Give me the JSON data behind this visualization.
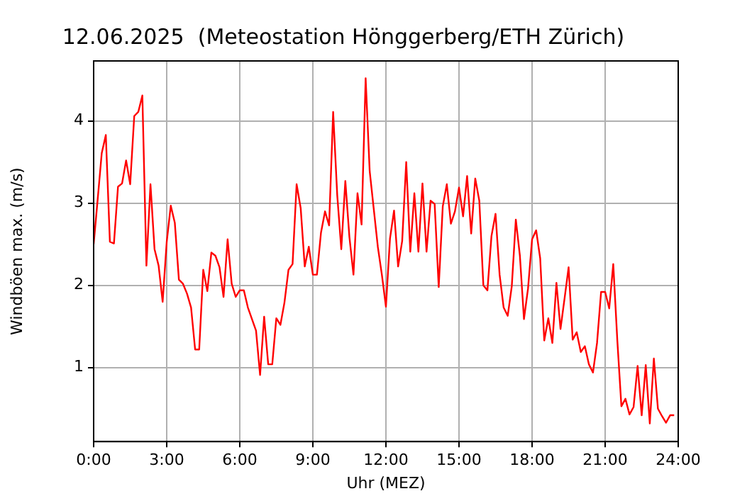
{
  "chart_data": {
    "type": "line",
    "title": "12.06.2025  (Meteostation Hönggerberg/ETH Zürich)",
    "xlabel": "Uhr (MEZ)",
    "ylabel": "Windböen max. (m/s)",
    "x": [
      0,
      0.167,
      0.333,
      0.5,
      0.667,
      0.833,
      1,
      1.167,
      1.333,
      1.5,
      1.667,
      1.833,
      2,
      2.167,
      2.333,
      2.5,
      2.667,
      2.833,
      3,
      3.167,
      3.333,
      3.5,
      3.667,
      3.833,
      4,
      4.167,
      4.333,
      4.5,
      4.667,
      4.833,
      5,
      5.167,
      5.333,
      5.5,
      5.667,
      5.833,
      6,
      6.167,
      6.333,
      6.5,
      6.667,
      6.833,
      7,
      7.167,
      7.333,
      7.5,
      7.667,
      7.833,
      8,
      8.167,
      8.333,
      8.5,
      8.667,
      8.833,
      9,
      9.167,
      9.333,
      9.5,
      9.667,
      9.833,
      10,
      10.167,
      10.333,
      10.5,
      10.667,
      10.833,
      11,
      11.167,
      11.333,
      11.5,
      11.667,
      11.833,
      12,
      12.167,
      12.333,
      12.5,
      12.667,
      12.833,
      13,
      13.167,
      13.333,
      13.5,
      13.667,
      13.833,
      14,
      14.167,
      14.333,
      14.5,
      14.667,
      14.833,
      15,
      15.167,
      15.333,
      15.5,
      15.667,
      15.833,
      16,
      16.167,
      16.333,
      16.5,
      16.667,
      16.833,
      17,
      17.167,
      17.333,
      17.5,
      17.667,
      17.833,
      18,
      18.167,
      18.333,
      18.5,
      18.667,
      18.833,
      19,
      19.167,
      19.333,
      19.5,
      19.667,
      19.833,
      20,
      20.167,
      20.333,
      20.5,
      20.667,
      20.833,
      21,
      21.167,
      21.333,
      21.5,
      21.667,
      21.833,
      22,
      22.167,
      22.333,
      22.5,
      22.667,
      22.833,
      23,
      23.167,
      23.333,
      23.5,
      23.667,
      23.833
    ],
    "series": [
      {
        "color": "#ff0000",
        "values": [
          2.5,
          3.05,
          3.61,
          3.83,
          2.53,
          2.51,
          3.2,
          3.24,
          3.52,
          3.23,
          4.06,
          4.11,
          4.31,
          2.24,
          3.23,
          2.44,
          2.24,
          1.8,
          2.53,
          2.97,
          2.76,
          2.07,
          2.02,
          1.9,
          1.73,
          1.22,
          1.22,
          2.19,
          1.93,
          2.4,
          2.36,
          2.22,
          1.86,
          2.56,
          2.02,
          1.86,
          1.94,
          1.94,
          1.73,
          1.59,
          1.45,
          0.91,
          1.62,
          1.04,
          1.04,
          1.6,
          1.52,
          1.79,
          2.19,
          2.26,
          3.23,
          2.94,
          2.23,
          2.47,
          2.13,
          2.13,
          2.64,
          2.9,
          2.73,
          4.11,
          3.1,
          2.44,
          3.27,
          2.59,
          2.13,
          3.12,
          2.74,
          4.52,
          3.39,
          2.93,
          2.47,
          2.13,
          1.74,
          2.57,
          2.91,
          2.23,
          2.54,
          3.5,
          2.41,
          3.12,
          2.41,
          3.24,
          2.41,
          3.03,
          2.99,
          1.98,
          2.96,
          3.23,
          2.75,
          2.9,
          3.19,
          2.84,
          3.33,
          2.63,
          3.3,
          3.03,
          2.0,
          1.94,
          2.6,
          2.87,
          2.13,
          1.73,
          1.63,
          1.99,
          2.8,
          2.36,
          1.59,
          1.96,
          2.56,
          2.67,
          2.33,
          1.33,
          1.6,
          1.3,
          2.03,
          1.47,
          1.84,
          2.22,
          1.34,
          1.43,
          1.19,
          1.26,
          1.04,
          0.94,
          1.3,
          1.92,
          1.92,
          1.72,
          2.26,
          1.33,
          0.53,
          0.62,
          0.43,
          0.52,
          1.02,
          0.42,
          1.03,
          0.32,
          1.11,
          0.5,
          0.41,
          0.33,
          0.42,
          0.42
        ]
      }
    ],
    "xlim": [
      0,
      24
    ],
    "xticks": [
      {
        "value": 0,
        "label": "0:00"
      },
      {
        "value": 3,
        "label": "3:00"
      },
      {
        "value": 6,
        "label": "6:00"
      },
      {
        "value": 9,
        "label": "9:00"
      },
      {
        "value": 12,
        "label": "12:00"
      },
      {
        "value": 15,
        "label": "15:00"
      },
      {
        "value": 18,
        "label": "18:00"
      },
      {
        "value": 21,
        "label": "21:00"
      },
      {
        "value": 24,
        "label": "24:00"
      }
    ],
    "ylim": [
      0.1,
      4.73
    ],
    "yticks": [
      1,
      2,
      3,
      4
    ],
    "grid": true,
    "legend": false,
    "marker": "none",
    "line_style": "solid"
  }
}
